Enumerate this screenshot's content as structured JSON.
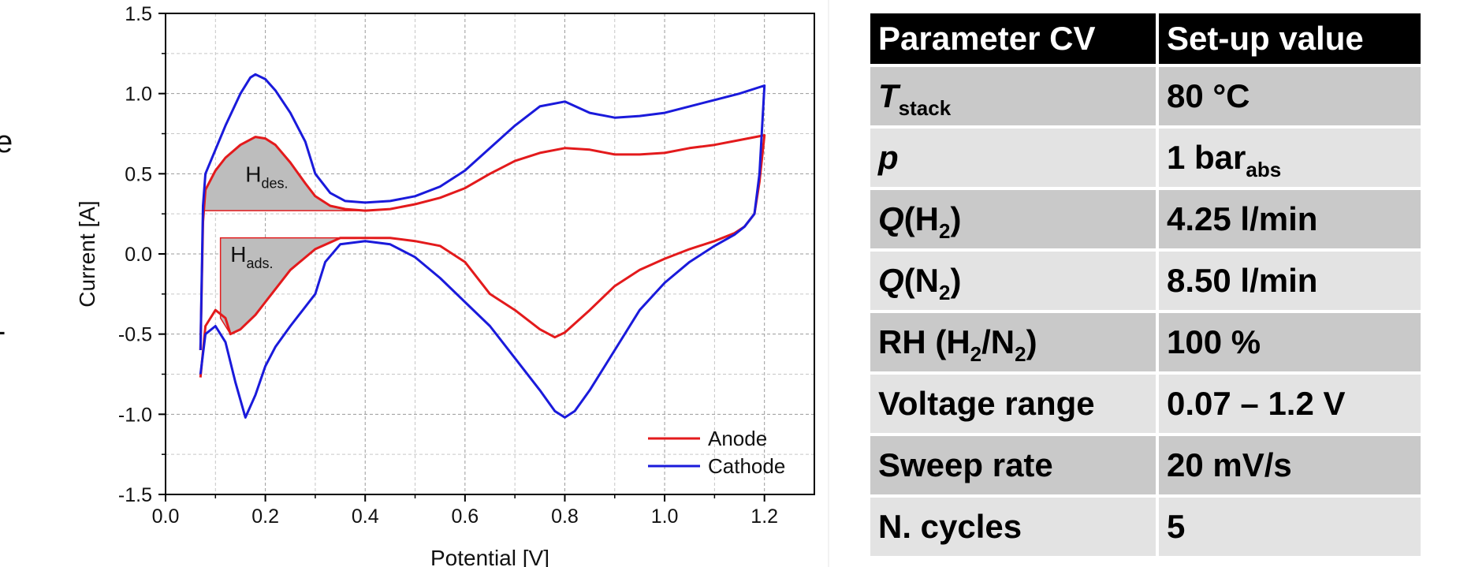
{
  "chart_data": {
    "type": "line",
    "title": "",
    "xlabel": "Potential [V]",
    "ylabel": "Current [A]",
    "xlim": [
      0.0,
      1.3
    ],
    "ylim": [
      -1.5,
      1.5
    ],
    "x_ticks": [
      "0.0",
      "0.2",
      "0.4",
      "0.6",
      "0.8",
      "1.0",
      "1.2"
    ],
    "y_ticks": [
      "1.5",
      "1.0",
      "0.5",
      "0.0",
      "-0.5",
      "-1.0",
      "-1.5"
    ],
    "grid": true,
    "legend": "bottom-right",
    "series": [
      {
        "name": "Anode",
        "color": "#e31a1c",
        "anodic_sweep": {
          "x": [
            0.07,
            0.075,
            0.08,
            0.1,
            0.12,
            0.15,
            0.18,
            0.2,
            0.22,
            0.25,
            0.28,
            0.3,
            0.33,
            0.36,
            0.4,
            0.45,
            0.5,
            0.55,
            0.6,
            0.65,
            0.7,
            0.75,
            0.8,
            0.85,
            0.9,
            0.95,
            1.0,
            1.05,
            1.1,
            1.15,
            1.2
          ],
          "y": [
            -0.6,
            0.2,
            0.4,
            0.52,
            0.6,
            0.68,
            0.73,
            0.72,
            0.68,
            0.57,
            0.44,
            0.36,
            0.3,
            0.28,
            0.27,
            0.28,
            0.31,
            0.35,
            0.41,
            0.5,
            0.58,
            0.63,
            0.66,
            0.65,
            0.62,
            0.62,
            0.63,
            0.66,
            0.68,
            0.71,
            0.74
          ]
        },
        "cathodic_sweep": {
          "x": [
            1.2,
            1.19,
            1.18,
            1.16,
            1.14,
            1.1,
            1.05,
            1.0,
            0.95,
            0.9,
            0.85,
            0.8,
            0.78,
            0.75,
            0.7,
            0.65,
            0.6,
            0.55,
            0.5,
            0.45,
            0.4,
            0.35,
            0.3,
            0.25,
            0.2,
            0.18,
            0.15,
            0.13,
            0.12,
            0.1,
            0.08,
            0.07
          ],
          "y": [
            0.74,
            0.45,
            0.25,
            0.17,
            0.13,
            0.08,
            0.03,
            -0.03,
            -0.1,
            -0.2,
            -0.35,
            -0.49,
            -0.52,
            -0.47,
            -0.35,
            -0.25,
            -0.05,
            0.05,
            0.08,
            0.1,
            0.1,
            0.1,
            0.03,
            -0.1,
            -0.3,
            -0.38,
            -0.47,
            -0.5,
            -0.4,
            -0.35,
            -0.45,
            -0.77
          ]
        }
      },
      {
        "name": "Cathode",
        "color": "#1a1adb",
        "anodic_sweep": {
          "x": [
            0.07,
            0.075,
            0.08,
            0.1,
            0.12,
            0.15,
            0.17,
            0.18,
            0.2,
            0.22,
            0.25,
            0.28,
            0.3,
            0.33,
            0.36,
            0.4,
            0.45,
            0.5,
            0.55,
            0.6,
            0.65,
            0.7,
            0.75,
            0.8,
            0.85,
            0.9,
            0.95,
            1.0,
            1.05,
            1.1,
            1.15,
            1.2
          ],
          "y": [
            -0.6,
            0.3,
            0.5,
            0.65,
            0.8,
            1.0,
            1.1,
            1.12,
            1.09,
            1.02,
            0.88,
            0.7,
            0.5,
            0.38,
            0.33,
            0.32,
            0.33,
            0.36,
            0.42,
            0.52,
            0.66,
            0.8,
            0.92,
            0.95,
            0.88,
            0.85,
            0.86,
            0.88,
            0.92,
            0.96,
            1.0,
            1.05
          ]
        },
        "cathodic_sweep": {
          "x": [
            1.2,
            1.19,
            1.18,
            1.16,
            1.14,
            1.1,
            1.05,
            1.0,
            0.95,
            0.9,
            0.85,
            0.82,
            0.8,
            0.78,
            0.75,
            0.7,
            0.65,
            0.6,
            0.55,
            0.5,
            0.45,
            0.4,
            0.35,
            0.32,
            0.3,
            0.25,
            0.22,
            0.2,
            0.18,
            0.16,
            0.14,
            0.12,
            0.1,
            0.08,
            0.07
          ],
          "y": [
            1.05,
            0.5,
            0.25,
            0.17,
            0.12,
            0.05,
            -0.05,
            -0.18,
            -0.35,
            -0.6,
            -0.85,
            -0.98,
            -1.02,
            -0.98,
            -0.85,
            -0.65,
            -0.45,
            -0.3,
            -0.15,
            -0.02,
            0.06,
            0.08,
            0.06,
            -0.05,
            -0.25,
            -0.45,
            -0.58,
            -0.7,
            -0.88,
            -1.02,
            -0.8,
            -0.55,
            -0.45,
            -0.5,
            -0.75
          ]
        }
      }
    ],
    "annotations": [
      {
        "base": "H",
        "sub": "des.",
        "x": 0.16,
        "y": 0.45
      },
      {
        "base": "H",
        "sub": "ads.",
        "x": 0.13,
        "y": -0.05
      }
    ],
    "shaded_regions": {
      "fill": "#bdbdbd",
      "desorption": {
        "baseline": 0.27,
        "x": [
          0.075,
          0.08,
          0.1,
          0.12,
          0.15,
          0.18,
          0.2,
          0.22,
          0.25,
          0.28,
          0.3,
          0.33,
          0.36,
          0.4
        ],
        "y": [
          0.27,
          0.4,
          0.52,
          0.6,
          0.68,
          0.73,
          0.72,
          0.68,
          0.57,
          0.44,
          0.36,
          0.3,
          0.28,
          0.27
        ]
      },
      "adsorption": {
        "baseline": 0.1,
        "x": [
          0.35,
          0.3,
          0.25,
          0.2,
          0.18,
          0.15,
          0.13,
          0.11
        ],
        "y": [
          0.1,
          0.03,
          -0.1,
          -0.3,
          -0.38,
          -0.47,
          -0.5,
          -0.4
        ]
      }
    }
  },
  "side_glyphs": [
    "e",
    "-"
  ],
  "table": {
    "headers": [
      "Parameter CV",
      "Set-up value"
    ],
    "rows": [
      {
        "p": {
          "base": "T",
          "sub": "stack",
          "italic": true
        },
        "v": {
          "base": "80 °C"
        }
      },
      {
        "p": {
          "base": "p",
          "italic": true
        },
        "v": {
          "base": "1 bar",
          "sub": "abs"
        }
      },
      {
        "p": {
          "base": "Q",
          "italic": true,
          "rest": "(H",
          "sub": "2",
          "after": ")"
        },
        "v": {
          "base": "4.25 l/min"
        }
      },
      {
        "p": {
          "base": "Q",
          "italic": true,
          "rest": "(N",
          "sub": "2",
          "after": ")"
        },
        "v": {
          "base": "8.50 l/min"
        }
      },
      {
        "p": {
          "base": "RH (H",
          "sub": "2",
          "mid": "/N",
          "sub2": "2",
          "after": ")"
        },
        "v": {
          "base": "100 %"
        }
      },
      {
        "p": {
          "base": "Voltage range"
        },
        "v": {
          "base": "0.07 – 1.2 V"
        }
      },
      {
        "p": {
          "base": "Sweep rate"
        },
        "v": {
          "base": "20 mV/s"
        }
      },
      {
        "p": {
          "base": "N. cycles"
        },
        "v": {
          "base": "5"
        }
      }
    ]
  }
}
